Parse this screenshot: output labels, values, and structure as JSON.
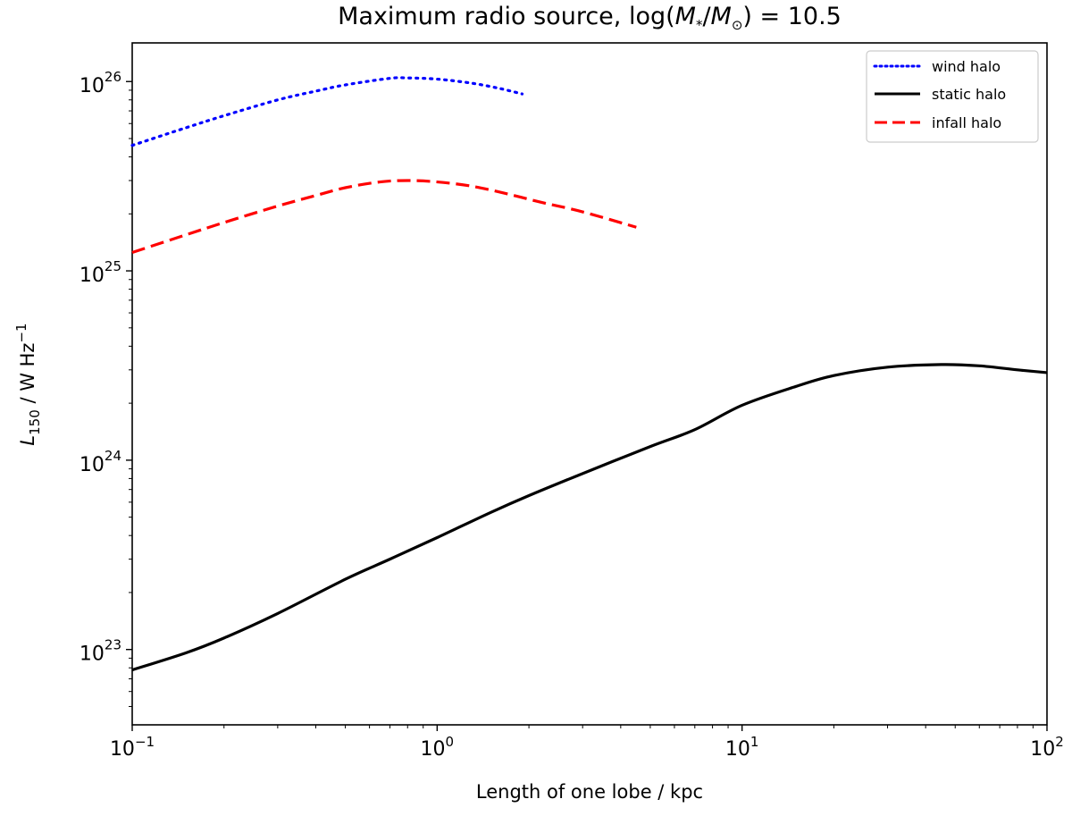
{
  "chart_data": {
    "type": "line",
    "title_parts": {
      "prefix": "Maximum radio source, log(",
      "m_star": "M",
      "m_star_sub": "*",
      "slash": "/",
      "m_sun": "M",
      "m_sun_sub": "⊙",
      "suffix": ") = 10.5"
    },
    "xlabel": "Length of one lobe / kpc",
    "ylabel_parts": {
      "symbol": "L",
      "sub": "150",
      "units": " / W Hz",
      "exp": "−1"
    },
    "xscale": "log",
    "yscale": "log",
    "xlim": [
      0.1,
      100
    ],
    "ylim": [
      4e+22,
      1.6e+26
    ],
    "x_ticks": [
      {
        "value": 0.1,
        "base": "10",
        "exp": "−1"
      },
      {
        "value": 1,
        "base": "10",
        "exp": "0"
      },
      {
        "value": 10,
        "base": "10",
        "exp": "1"
      },
      {
        "value": 100,
        "base": "10",
        "exp": "2"
      }
    ],
    "y_ticks": [
      {
        "value": 1e+23,
        "base": "10",
        "exp": "23"
      },
      {
        "value": 1e+24,
        "base": "10",
        "exp": "24"
      },
      {
        "value": 1e+25,
        "base": "10",
        "exp": "25"
      },
      {
        "value": 1e+26,
        "base": "10",
        "exp": "26"
      }
    ],
    "legend_position": "top-right",
    "series": [
      {
        "name": "wind halo",
        "color": "#0000ff",
        "style": "dotted",
        "x": [
          0.1,
          0.15,
          0.2,
          0.3,
          0.4,
          0.5,
          0.7,
          0.8,
          1.0,
          1.3,
          1.6,
          1.9
        ],
        "y": [
          4.6e+25,
          5.7e+25,
          6.6e+25,
          8e+25,
          8.9e+25,
          9.6e+25,
          1.04e+26,
          1.045e+26,
          1.03e+26,
          9.8e+25,
          9.2e+25,
          8.6e+25
        ]
      },
      {
        "name": "static halo",
        "color": "#000000",
        "style": "solid",
        "x": [
          0.1,
          0.15,
          0.2,
          0.3,
          0.5,
          0.7,
          1.0,
          1.5,
          2.0,
          3.0,
          5.0,
          7.0,
          10.0,
          15.0,
          20.0,
          30.0,
          45.0,
          60.0,
          80.0,
          100.0
        ],
        "y": [
          7.8e+22,
          9.6e+22,
          1.15e+23,
          1.55e+23,
          2.35e+23,
          3e+23,
          3.9e+23,
          5.3e+23,
          6.5e+23,
          8.5e+23,
          1.18e+24,
          1.45e+24,
          1.95e+24,
          2.45e+24,
          2.8e+24,
          3.1e+24,
          3.2e+24,
          3.15e+24,
          3e+24,
          2.9e+24
        ]
      },
      {
        "name": "infall halo",
        "color": "#ff0000",
        "style": "dashed",
        "x": [
          0.1,
          0.15,
          0.2,
          0.3,
          0.4,
          0.5,
          0.65,
          0.8,
          1.0,
          1.3,
          1.7,
          2.2,
          3.0,
          4.5
        ],
        "y": [
          1.25e+25,
          1.55e+25,
          1.8e+25,
          2.2e+25,
          2.5e+25,
          2.75e+25,
          2.95e+25,
          3e+25,
          2.95e+25,
          2.8e+25,
          2.55e+25,
          2.3e+25,
          2.05e+25,
          1.7e+25
        ]
      }
    ]
  }
}
